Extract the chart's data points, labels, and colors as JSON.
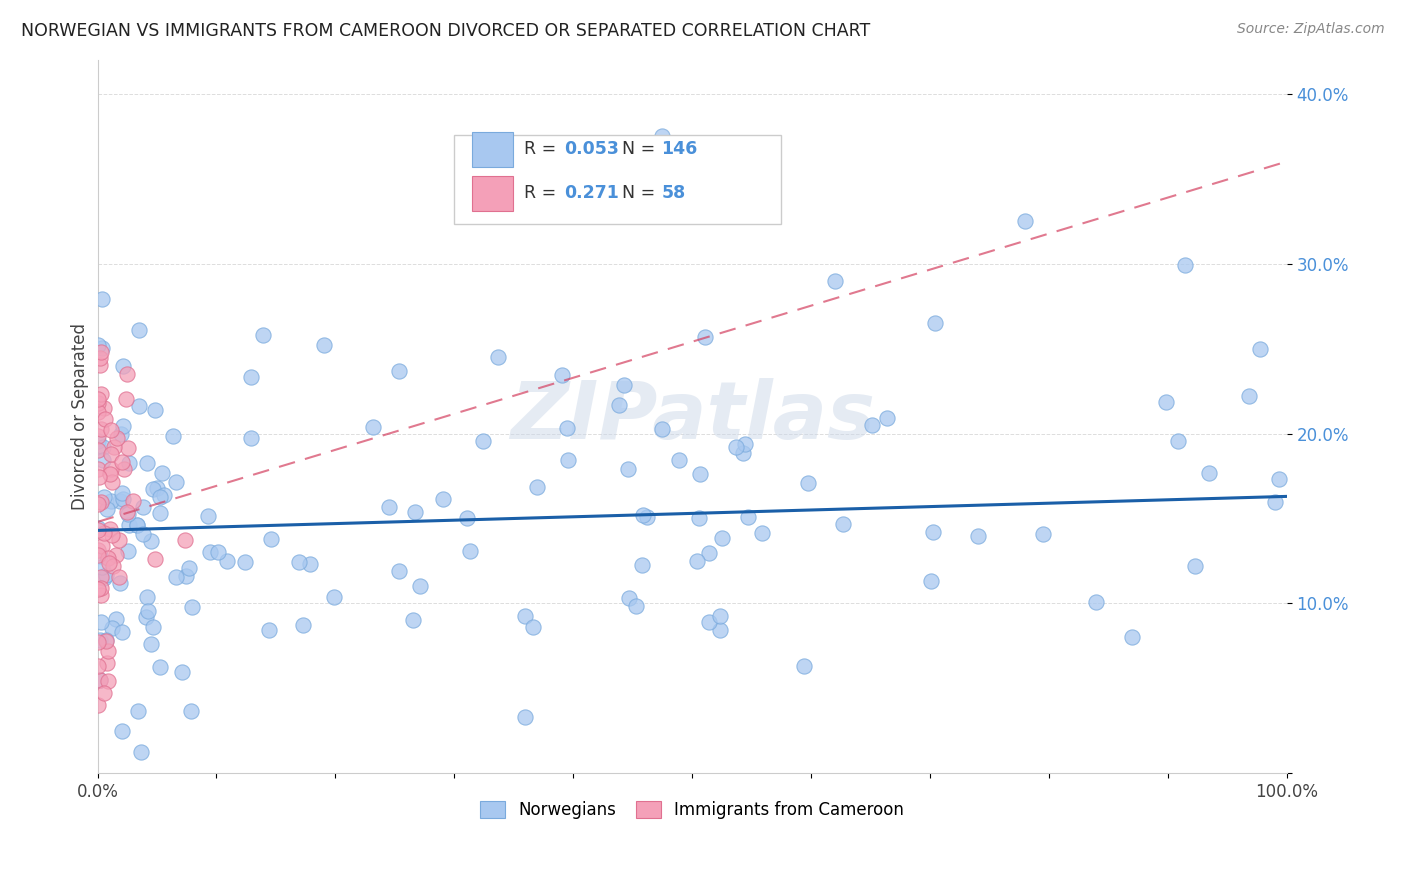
{
  "title": "NORWEGIAN VS IMMIGRANTS FROM CAMEROON DIVORCED OR SEPARATED CORRELATION CHART",
  "source": "Source: ZipAtlas.com",
  "ylabel": "Divorced or Separated",
  "watermark": "ZIPatlas",
  "xlim": [
    0.0,
    1.0
  ],
  "ylim": [
    0.0,
    0.42
  ],
  "norwegian_color": "#a8c8f0",
  "norwegian_edge_color": "#7aaadd",
  "cameroon_color": "#f4a0b8",
  "cameroon_edge_color": "#e07090",
  "norwegian_line_color": "#1a5fa8",
  "cameroon_line_color": "#d44060",
  "cameroon_line_dash_color": "#e0a0b0",
  "R_norwegian": 0.053,
  "N_norwegian": 146,
  "R_cameroon": 0.271,
  "N_cameroon": 58,
  "nor_line_x0": 0.0,
  "nor_line_x1": 1.0,
  "nor_line_y0": 0.143,
  "nor_line_y1": 0.163,
  "cam_line_x0": 0.0,
  "cam_line_x1": 1.0,
  "cam_line_y0": 0.148,
  "cam_line_y1": 0.36,
  "background_color": "#ffffff",
  "grid_color": "#dddddd"
}
